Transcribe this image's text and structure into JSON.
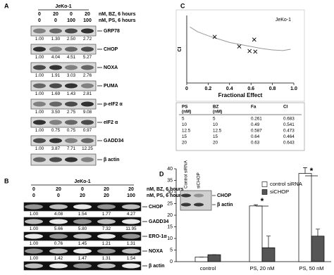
{
  "panel_a": {
    "letter": "A",
    "cell_line": "JeKo-1",
    "conditions": [
      {
        "doses": [
          "0",
          "20",
          "0",
          "20"
        ],
        "unit": "nM, BZ, 6 hours"
      },
      {
        "doses": [
          "0",
          "0",
          "100",
          "100"
        ],
        "unit": "nM, PS, 6 hours"
      }
    ],
    "blots": [
      {
        "name": "GRP78",
        "quant": [
          "1.00",
          "1.30",
          "2.50",
          "2.72"
        ]
      },
      {
        "name": "CHOP",
        "quant": [
          "1.00",
          "4.04",
          "4.51",
          "5.27"
        ]
      },
      {
        "name": "NOXA",
        "quant": [
          "1.00",
          "1.91",
          "3.03",
          "2.76"
        ]
      },
      {
        "name": "PUMA",
        "quant": [
          "1.00",
          "1.69",
          "1.43",
          "2.81"
        ]
      },
      {
        "name": "p-eIF2 α",
        "quant": [
          "1.00",
          "3.50",
          "2.75",
          "9.08"
        ]
      },
      {
        "name": "eIF2 α",
        "quant": [
          "1.00",
          "0.75",
          "0.75",
          "0.97"
        ]
      },
      {
        "name": "GADD34",
        "quant": [
          "1.00",
          "3.87",
          "7.71",
          "12.25"
        ]
      },
      {
        "name": "β actin"
      }
    ]
  },
  "panel_b": {
    "letter": "B",
    "cell_line": "JeKo-1",
    "conditions": [
      {
        "doses": [
          "0",
          "20",
          "0",
          "20",
          "20"
        ],
        "unit": "nM, BZ, 6 hours"
      },
      {
        "doses": [
          "0",
          "0",
          "20",
          "20",
          "100"
        ],
        "unit": "nM, PS, 6 hours"
      }
    ],
    "blots": [
      {
        "name": "CHOP",
        "quant": [
          "1.00",
          "4.08",
          "1.54",
          "1.77",
          "4.27"
        ]
      },
      {
        "name": "GADD34",
        "quant": [
          "1.00",
          "5.66",
          "5.80",
          "7.32",
          "11.95"
        ]
      },
      {
        "name": "ERO-1α",
        "quant": [
          "1.00",
          "0.76",
          "1.45",
          "1.21",
          "1.31"
        ]
      },
      {
        "name": "NOXA",
        "quant": [
          "1.00",
          "1.42",
          "1.47",
          "1.31",
          "1.54"
        ]
      },
      {
        "name": "β actin"
      }
    ]
  },
  "panel_c": {
    "letter": "C",
    "table": {
      "header": [
        [
          "PS",
          "(nM)"
        ],
        [
          "BZ",
          "(nM)"
        ],
        [
          "Fa"
        ],
        [
          "CI"
        ]
      ],
      "rows": [
        [
          "5",
          "5",
          "0.261",
          "0.683"
        ],
        [
          "10",
          "10",
          "0.49",
          "0.541"
        ],
        [
          "12.5",
          "12.5",
          "0.587",
          "0.473"
        ],
        [
          "15",
          "15",
          "0.64",
          "0.464"
        ],
        [
          "20",
          "20",
          "0.63",
          "0.643"
        ]
      ]
    }
  },
  "panel_d": {
    "letter": "D"
  },
  "chart_data": [
    {
      "type": "line",
      "x_label": "Fractional Effect",
      "y_label": "CI",
      "series": [
        {
          "name": "JeKo-1",
          "color": "#999999",
          "x": [
            0.03,
            0.1,
            0.2,
            0.3,
            0.4,
            0.5,
            0.6,
            0.7,
            0.8,
            0.9,
            0.97
          ],
          "values": [
            0.83,
            0.76,
            0.7,
            0.65,
            0.6,
            0.57,
            0.54,
            0.51,
            0.49,
            0.48,
            0.5
          ]
        }
      ],
      "points": {
        "x": [
          0.261,
          0.49,
          0.587,
          0.64,
          0.63
        ],
        "values": [
          0.683,
          0.541,
          0.473,
          0.464,
          0.643
        ],
        "marker": "x",
        "color": "#000000"
      },
      "xlim": [
        0,
        1
      ],
      "ylim": [
        0,
        1
      ],
      "xticks": [
        0,
        0.2,
        0.4,
        0.6,
        0.8,
        {
          "value": 1,
          "label": "1.0"
        }
      ],
      "legend_position": "upper right"
    },
    {
      "type": "bar",
      "categories": [
        "control",
        "PS, 20 nM",
        "PS, 50 nM"
      ],
      "series": [
        {
          "name": "control siRNA",
          "color": "#ffffff",
          "values": [
            2,
            24,
            38
          ],
          "errors": [
            0,
            0.5,
            2.5
          ]
        },
        {
          "name": "siCHOP",
          "color": "#555555",
          "values": [
            3,
            6,
            11
          ],
          "errors": [
            0,
            5,
            3
          ]
        }
      ],
      "ylim": [
        0,
        40
      ],
      "yticks": [
        0,
        5,
        10,
        15,
        20,
        25,
        30,
        35,
        40
      ],
      "legend_position": "upper right",
      "annotations": [
        "*",
        "*"
      ],
      "inset": {
        "lanes": [
          "Control siRNA",
          "siCHOP"
        ],
        "bands": [
          "CHOP",
          "β actin"
        ]
      }
    }
  ]
}
